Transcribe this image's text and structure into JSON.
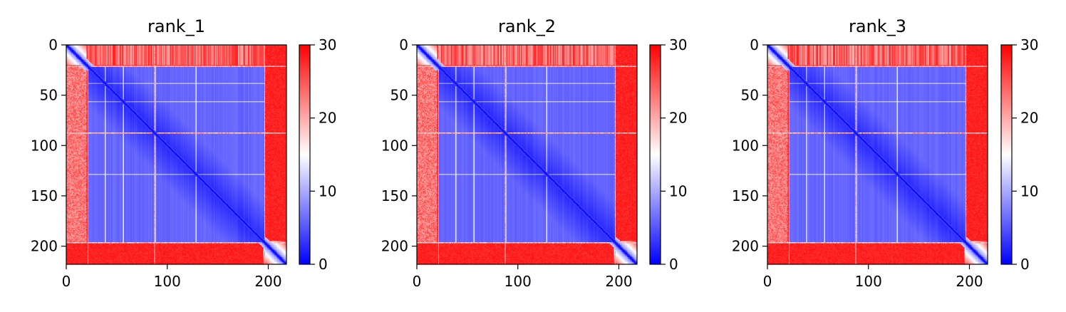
{
  "chart_data": [
    {
      "type": "heatmap",
      "title": "rank_1",
      "xlim": [
        0,
        218
      ],
      "ylim": [
        218,
        0
      ],
      "x_ticks": [
        0,
        100,
        200
      ],
      "y_ticks": [
        0,
        50,
        100,
        150,
        200
      ],
      "colorbar": {
        "range": [
          0,
          30
        ],
        "ticks": [
          0,
          10,
          20,
          30
        ],
        "colormap": "bwr",
        "low_color": "#0000ff",
        "mid_color": "#ffffff",
        "high_color": "#ff0000"
      },
      "matrix_description": {
        "size": 218,
        "core_region": [
          [
            22,
            86
          ],
          [
            88,
            195
          ]
        ],
        "flexible_tail_start": 195,
        "flexible_head_end": 20,
        "low_value": 2,
        "high_value": 29,
        "diagonal_value": 0
      }
    },
    {
      "type": "heatmap",
      "title": "rank_2",
      "xlim": [
        0,
        218
      ],
      "ylim": [
        218,
        0
      ],
      "x_ticks": [
        0,
        100,
        200
      ],
      "y_ticks": [
        0,
        50,
        100,
        150,
        200
      ],
      "colorbar": {
        "range": [
          0,
          30
        ],
        "ticks": [
          0,
          10,
          20,
          30
        ],
        "colormap": "bwr",
        "low_color": "#0000ff",
        "mid_color": "#ffffff",
        "high_color": "#ff0000"
      },
      "matrix_description": {
        "size": 218,
        "core_region": [
          [
            22,
            86
          ],
          [
            88,
            195
          ]
        ],
        "flexible_tail_start": 195,
        "flexible_head_end": 20,
        "low_value": 2,
        "high_value": 29,
        "diagonal_value": 0
      }
    },
    {
      "type": "heatmap",
      "title": "rank_3",
      "xlim": [
        0,
        218
      ],
      "ylim": [
        218,
        0
      ],
      "x_ticks": [
        0,
        100,
        200
      ],
      "y_ticks": [
        0,
        50,
        100,
        150,
        200
      ],
      "colorbar": {
        "range": [
          0,
          30
        ],
        "ticks": [
          0,
          10,
          20,
          30
        ],
        "colormap": "bwr",
        "low_color": "#0000ff",
        "mid_color": "#ffffff",
        "high_color": "#ff0000"
      },
      "matrix_description": {
        "size": 218,
        "core_region": [
          [
            22,
            86
          ],
          [
            88,
            195
          ]
        ],
        "flexible_tail_start": 195,
        "flexible_head_end": 20,
        "low_value": 2,
        "high_value": 29,
        "diagonal_value": 0
      }
    }
  ]
}
